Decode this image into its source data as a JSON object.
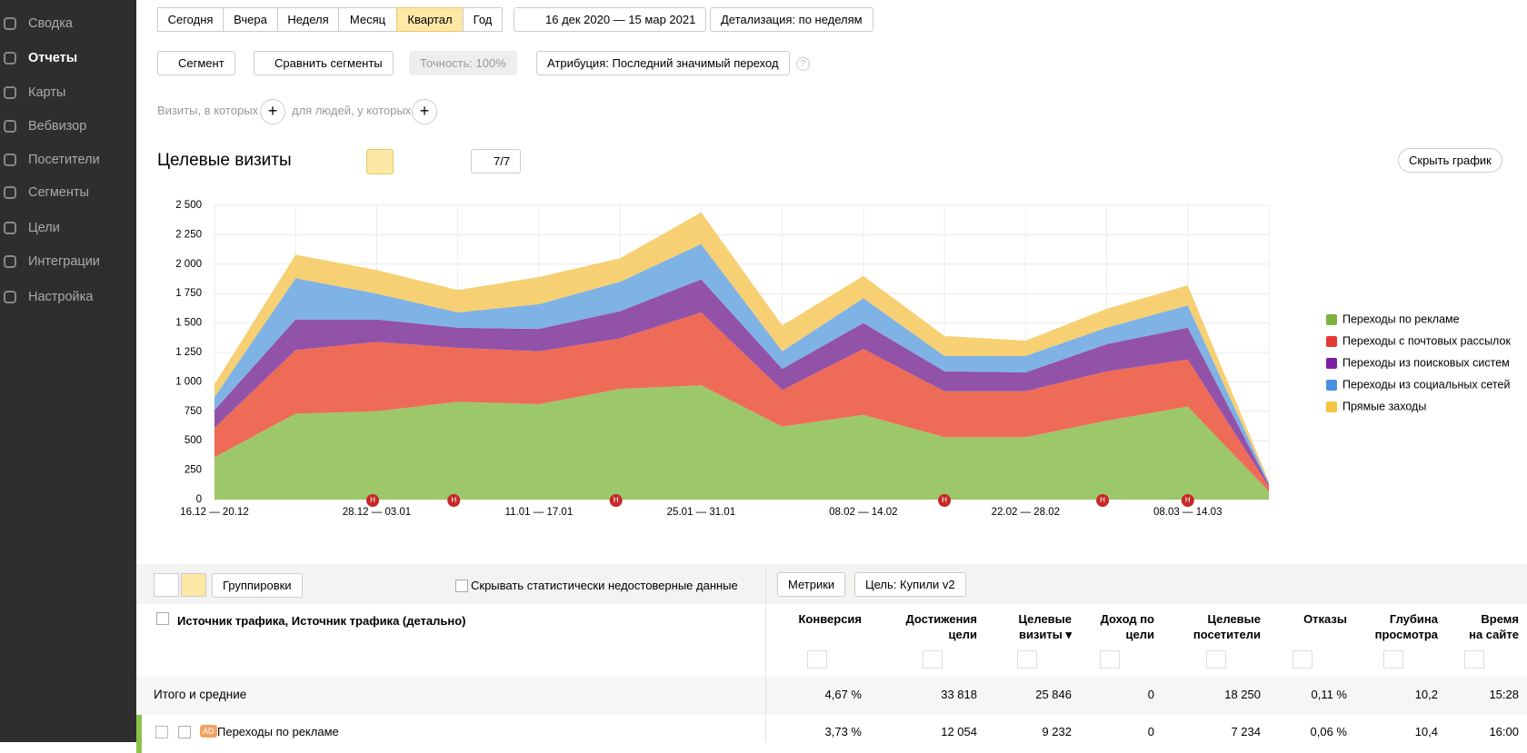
{
  "sidebar": {
    "items": [
      "Сводка",
      "Отчеты",
      "Карты",
      "Вебвизор",
      "Посетители",
      "Сегменты",
      "Цели",
      "Интеграции",
      "Настройка"
    ],
    "active": 1
  },
  "periods": {
    "items": [
      "Сегодня",
      "Вчера",
      "Неделя",
      "Месяц",
      "Квартал",
      "Год"
    ],
    "active": 4
  },
  "date_range": "16 дек 2020 — 15 мар 2021",
  "detail": "Детализация: по неделям",
  "segment_bar": {
    "segment": "Сегмент",
    "compare": "Сравнить сегменты",
    "accuracy": "Точность: 100%",
    "attribution": "Атрибуция: Последний значимый переход",
    "help": "?"
  },
  "filters": {
    "visits": "Визиты, в которых",
    "people": "для людей, у которых",
    "add": "+"
  },
  "chart_header": {
    "title": "Целевые визиты",
    "counter": "7/7",
    "hide": "Скрыть график"
  },
  "chart_data": {
    "type": "stacked_area",
    "categories": [
      "16.12 — 20.12",
      null,
      "28.12 — 03.01",
      null,
      "11.01 — 17.01",
      null,
      "25.01 — 31.01",
      null,
      "08.02 — 14.02",
      null,
      "22.02 — 28.02",
      null,
      "08.03 — 14.03",
      null
    ],
    "series": [
      {
        "name": "Переходы по рекламе",
        "color": "#9dc86a",
        "legend_color": "#7cb342",
        "values": [
          360,
          730,
          750,
          830,
          810,
          940,
          970,
          620,
          720,
          530,
          530,
          670,
          790,
          70
        ]
      },
      {
        "name": "Переходы с почтовых рассылок",
        "color": "#ee6b57",
        "legend_color": "#e53935",
        "values": [
          250,
          540,
          590,
          460,
          450,
          430,
          620,
          310,
          560,
          390,
          390,
          420,
          400,
          40
        ]
      },
      {
        "name": "Переходы из поисковых систем",
        "color": "#9152a8",
        "legend_color": "#7b1fa2",
        "values": [
          150,
          260,
          190,
          170,
          190,
          230,
          280,
          180,
          220,
          170,
          160,
          230,
          270,
          15
        ]
      },
      {
        "name": "Переходы из социальных сетей",
        "color": "#7fb2e5",
        "legend_color": "#4a90e2",
        "values": [
          110,
          350,
          220,
          130,
          210,
          250,
          300,
          150,
          210,
          130,
          140,
          140,
          190,
          15
        ]
      },
      {
        "name": "Прямые заходы",
        "color": "#f6d073",
        "legend_color": "#f4c542",
        "values": [
          110,
          200,
          200,
          190,
          230,
          200,
          270,
          220,
          190,
          170,
          130,
          160,
          170,
          15
        ]
      }
    ],
    "ylim": [
      0,
      2500
    ],
    "yticks": [
      0,
      250,
      500,
      750,
      {
        "value": 1000,
        "label": "1 000"
      },
      {
        "value": 1250,
        "label": "1 250"
      },
      {
        "value": 1500,
        "label": "1 500"
      },
      {
        "value": 1750,
        "label": "1 750"
      },
      {
        "value": 2000,
        "label": "2 000"
      },
      {
        "value": 2250,
        "label": "2 250"
      },
      {
        "value": 2500,
        "label": "2 500"
      }
    ],
    "grid": true,
    "legend": "right",
    "annotations": [
      "Н",
      "Н",
      "Н",
      "Н",
      "Н",
      "Н"
    ]
  },
  "table_toolbar": {
    "groupings": "Группировки",
    "hide_unreliable": "Скрывать статистически недостоверные данные",
    "metrics": "Метрики",
    "goal": "Цель: Купили v2"
  },
  "table": {
    "dimension": "Источник трафика, Источник трафика (детально)",
    "columns": [
      [
        "Конверсия"
      ],
      [
        "Достижения",
        "цели"
      ],
      [
        "Целевые",
        "визиты ▾"
      ],
      [
        "Доход по",
        "цели"
      ],
      [
        "Целевые",
        "посетители"
      ],
      [
        "Отказы"
      ],
      [
        "Глубина",
        "просмотра"
      ],
      [
        "Время",
        "на сайте"
      ]
    ],
    "totals": {
      "label": "Итого и средние",
      "cells": [
        "4,67 %",
        "33 818",
        "25 846",
        "0",
        "18 250",
        "0,11 %",
        "10,2",
        "15:28"
      ]
    },
    "rows": [
      {
        "badge": "AD",
        "label": "Переходы по рекламе",
        "cells": [
          "3,73 %",
          "12 054",
          "9 232",
          "0",
          "7 234",
          "0,06 %",
          "10,4",
          "16:00"
        ]
      }
    ]
  }
}
